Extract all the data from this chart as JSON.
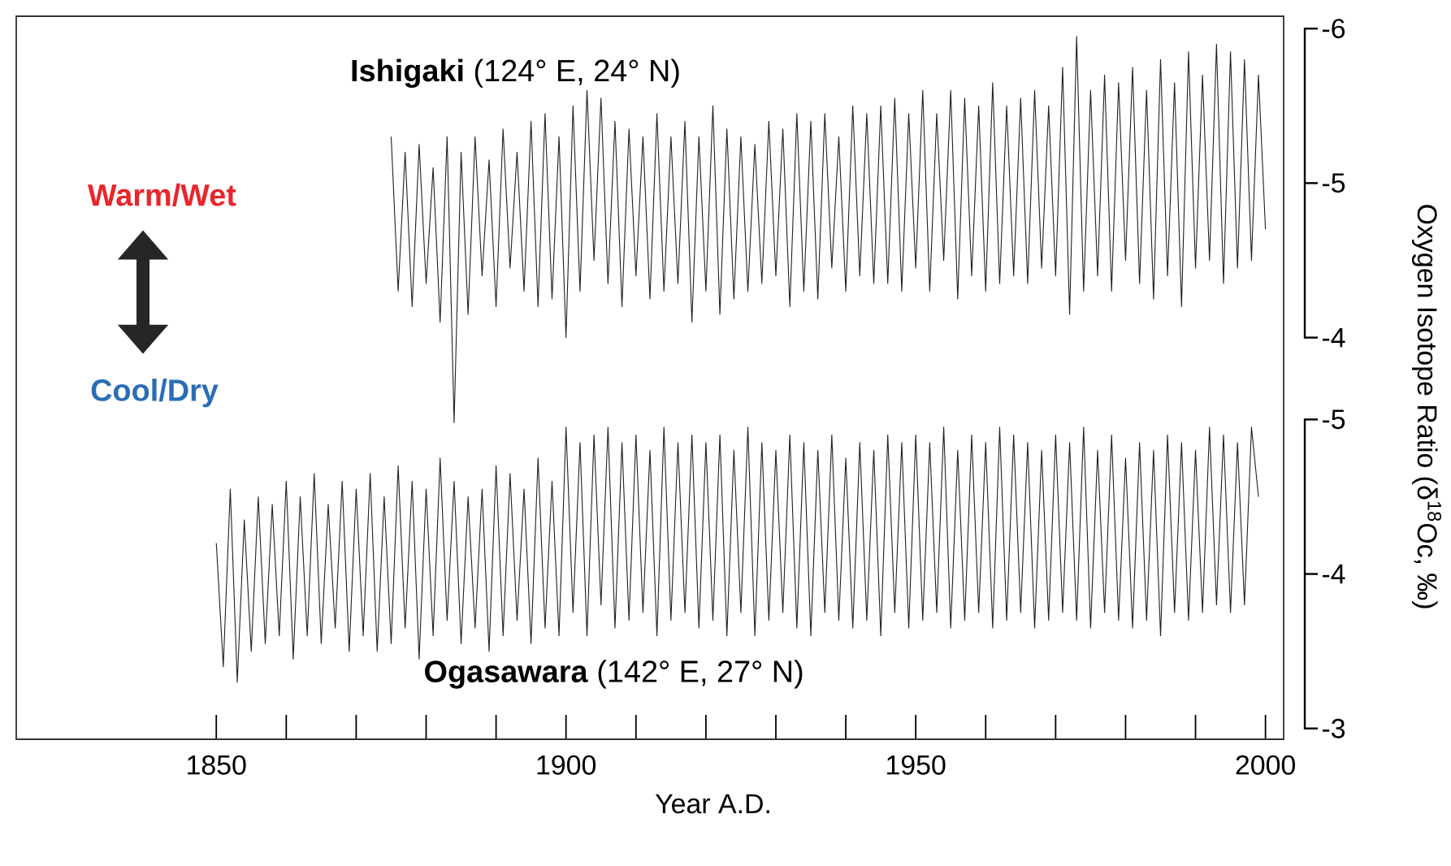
{
  "chart_data": {
    "type": "line",
    "xlabel": "Year A.D.",
    "y2label": "Oxygen Isotope Ratio (δ$^{18}$Oc, ‰)",
    "annotations": [
      "Warm/Wet",
      "Cool/Dry"
    ],
    "xlim": [
      1821.4,
      2002.6
    ],
    "xticks": [
      1850,
      {
        "value": 1860,
        "label": null
      },
      {
        "value": 1870,
        "label": null
      },
      {
        "value": 1880,
        "label": null
      },
      {
        "value": 1890,
        "label": null
      },
      1900,
      {
        "value": 1910,
        "label": null
      },
      {
        "value": 1920,
        "label": null
      },
      {
        "value": 1930,
        "label": null
      },
      {
        "value": 1940,
        "label": null
      },
      1950,
      {
        "value": 1960,
        "label": null
      },
      {
        "value": 1970,
        "label": null
      },
      {
        "value": 1980,
        "label": null
      },
      {
        "value": 1990,
        "label": null
      },
      2000
    ],
    "ylim": [
      -1.4,
      -6.08
    ],
    "yticks": [
      -6,
      -5,
      -4
    ],
    "y2lim": [
      -2.93,
      -7.61
    ],
    "y2ticks": [
      -5,
      -4,
      -3
    ],
    "series": [
      {
        "name": "**Ishigaki** (124° E, 24° N)",
        "color": "#231f20",
        "x": [
          1875,
          1876,
          1877,
          1878,
          1879,
          1880,
          1881,
          1882,
          1883,
          1884,
          1885,
          1886,
          1887,
          1888,
          1889,
          1890,
          1891,
          1892,
          1893,
          1894,
          1895,
          1896,
          1897,
          1898,
          1899,
          1900,
          1901,
          1902,
          1903,
          1904,
          1905,
          1906,
          1907,
          1908,
          1909,
          1910,
          1911,
          1912,
          1913,
          1914,
          1915,
          1916,
          1917,
          1918,
          1919,
          1920,
          1921,
          1922,
          1923,
          1924,
          1925,
          1926,
          1927,
          1928,
          1929,
          1930,
          1931,
          1932,
          1933,
          1934,
          1935,
          1936,
          1937,
          1938,
          1939,
          1940,
          1941,
          1942,
          1943,
          1944,
          1945,
          1946,
          1947,
          1948,
          1949,
          1950,
          1951,
          1952,
          1953,
          1954,
          1955,
          1956,
          1957,
          1958,
          1959,
          1960,
          1961,
          1962,
          1963,
          1964,
          1965,
          1966,
          1967,
          1968,
          1969,
          1970,
          1971,
          1972,
          1973,
          1974,
          1975,
          1976,
          1977,
          1978,
          1979,
          1980,
          1981,
          1982,
          1983,
          1984,
          1985,
          1986,
          1987,
          1988,
          1989,
          1990,
          1991,
          1992,
          1993,
          1994,
          1995,
          1996,
          1997,
          1998,
          1999,
          2000
        ],
        "values": [
          -5.3,
          -4.3,
          -5.2,
          -4.2,
          -5.25,
          -4.35,
          -5.1,
          -4.1,
          -5.3,
          -3.45,
          -5.2,
          -4.15,
          -5.3,
          -4.4,
          -5.15,
          -4.2,
          -5.35,
          -4.45,
          -5.2,
          -4.3,
          -5.4,
          -4.2,
          -5.45,
          -4.25,
          -5.3,
          -4.0,
          -5.5,
          -4.3,
          -5.6,
          -4.5,
          -5.55,
          -4.35,
          -5.4,
          -4.2,
          -5.35,
          -4.4,
          -5.3,
          -4.25,
          -5.45,
          -4.3,
          -5.3,
          -4.35,
          -5.4,
          -4.1,
          -5.3,
          -4.3,
          -5.5,
          -4.15,
          -5.35,
          -4.25,
          -5.3,
          -4.3,
          -5.25,
          -4.35,
          -5.4,
          -4.4,
          -5.35,
          -4.2,
          -5.45,
          -4.3,
          -5.4,
          -4.25,
          -5.45,
          -4.45,
          -5.3,
          -4.3,
          -5.5,
          -4.4,
          -5.45,
          -4.35,
          -5.5,
          -4.35,
          -5.55,
          -4.3,
          -5.45,
          -4.45,
          -5.6,
          -4.3,
          -5.45,
          -4.5,
          -5.6,
          -4.25,
          -5.55,
          -4.4,
          -5.5,
          -4.3,
          -5.65,
          -4.35,
          -5.5,
          -4.4,
          -5.55,
          -4.35,
          -5.6,
          -4.45,
          -5.5,
          -4.4,
          -5.75,
          -4.15,
          -5.95,
          -4.3,
          -5.6,
          -4.4,
          -5.7,
          -4.3,
          -5.65,
          -4.5,
          -5.75,
          -4.35,
          -5.6,
          -4.25,
          -5.8,
          -4.4,
          -5.65,
          -4.2,
          -5.85,
          -4.45,
          -5.7,
          -4.5,
          -5.9,
          -4.35,
          -5.85,
          -4.45,
          -5.8,
          -4.5,
          -5.7,
          -4.7
        ]
      },
      {
        "name": "**Ogasawara** (142° E, 27° N)",
        "color": "#231f20",
        "axis": "y2",
        "x": [
          1850,
          1851,
          1852,
          1853,
          1854,
          1855,
          1856,
          1857,
          1858,
          1859,
          1860,
          1861,
          1862,
          1863,
          1864,
          1865,
          1866,
          1867,
          1868,
          1869,
          1870,
          1871,
          1872,
          1873,
          1874,
          1875,
          1876,
          1877,
          1878,
          1879,
          1880,
          1881,
          1882,
          1883,
          1884,
          1885,
          1886,
          1887,
          1888,
          1889,
          1890,
          1891,
          1892,
          1893,
          1894,
          1895,
          1896,
          1897,
          1898,
          1899,
          1900,
          1901,
          1902,
          1903,
          1904,
          1905,
          1906,
          1907,
          1908,
          1909,
          1910,
          1911,
          1912,
          1913,
          1914,
          1915,
          1916,
          1917,
          1918,
          1919,
          1920,
          1921,
          1922,
          1923,
          1924,
          1925,
          1926,
          1927,
          1928,
          1929,
          1930,
          1931,
          1932,
          1933,
          1934,
          1935,
          1936,
          1937,
          1938,
          1939,
          1940,
          1941,
          1942,
          1943,
          1944,
          1945,
          1946,
          1947,
          1948,
          1949,
          1950,
          1951,
          1952,
          1953,
          1954,
          1955,
          1956,
          1957,
          1958,
          1959,
          1960,
          1961,
          1962,
          1963,
          1964,
          1965,
          1966,
          1967,
          1968,
          1969,
          1970,
          1971,
          1972,
          1973,
          1974,
          1975,
          1976,
          1977,
          1978,
          1979,
          1980,
          1981,
          1982,
          1983,
          1984,
          1985,
          1986,
          1987,
          1988,
          1989,
          1990,
          1991,
          1992,
          1993,
          1994,
          1995,
          1996,
          1997,
          1998,
          1999
        ],
        "values": [
          -4.2,
          -3.4,
          -4.55,
          -3.3,
          -4.35,
          -3.5,
          -4.5,
          -3.55,
          -4.45,
          -3.6,
          -4.6,
          -3.45,
          -4.5,
          -3.6,
          -4.65,
          -3.55,
          -4.45,
          -3.65,
          -4.6,
          -3.5,
          -4.55,
          -3.6,
          -4.65,
          -3.5,
          -4.5,
          -3.55,
          -4.7,
          -3.65,
          -4.6,
          -3.45,
          -4.55,
          -3.6,
          -4.75,
          -3.7,
          -4.6,
          -3.55,
          -4.5,
          -3.65,
          -4.55,
          -3.5,
          -4.7,
          -3.6,
          -4.65,
          -3.7,
          -4.55,
          -3.55,
          -4.75,
          -3.65,
          -4.6,
          -3.6,
          -4.95,
          -3.75,
          -4.85,
          -3.6,
          -4.9,
          -3.8,
          -4.95,
          -3.65,
          -4.85,
          -3.7,
          -4.9,
          -3.75,
          -4.8,
          -3.6,
          -4.95,
          -3.7,
          -4.85,
          -3.75,
          -4.9,
          -3.65,
          -4.85,
          -3.7,
          -4.9,
          -3.6,
          -4.8,
          -3.75,
          -4.95,
          -3.6,
          -4.85,
          -3.7,
          -4.8,
          -3.75,
          -4.9,
          -3.65,
          -4.85,
          -3.6,
          -4.8,
          -3.75,
          -4.9,
          -3.7,
          -4.75,
          -3.65,
          -4.85,
          -3.7,
          -4.8,
          -3.6,
          -4.9,
          -3.75,
          -4.85,
          -3.65,
          -4.9,
          -3.7,
          -4.85,
          -3.75,
          -4.95,
          -3.65,
          -4.8,
          -3.7,
          -4.9,
          -3.75,
          -4.85,
          -3.65,
          -4.95,
          -3.7,
          -4.9,
          -3.75,
          -4.85,
          -3.65,
          -4.8,
          -3.7,
          -4.9,
          -3.75,
          -4.85,
          -3.7,
          -4.95,
          -3.65,
          -4.8,
          -3.75,
          -4.9,
          -3.7,
          -4.75,
          -3.65,
          -4.85,
          -3.7,
          -4.8,
          -3.6,
          -4.9,
          -3.75,
          -4.85,
          -3.7,
          -4.8,
          -3.75,
          -4.95,
          -3.8,
          -4.9,
          -3.75,
          -4.85,
          -3.8,
          -4.95,
          -4.5
        ]
      }
    ]
  }
}
